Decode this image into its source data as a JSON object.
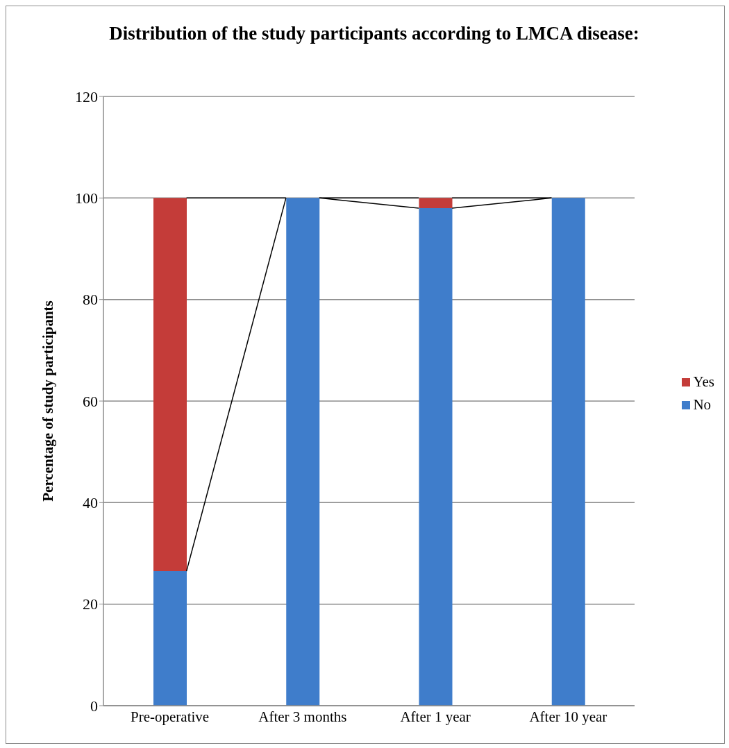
{
  "chart_data": {
    "type": "bar",
    "title": "Distribution of the study participants according to LMCA disease:",
    "ylabel": "Percentage of study participants",
    "categories": [
      "Pre-operative",
      "After 3 months",
      "After 1 year",
      "After 10 year"
    ],
    "series": [
      {
        "name": "No",
        "color": "#3f7dcb",
        "values": [
          26.5,
          100,
          98,
          100
        ]
      },
      {
        "name": "Yes",
        "color": "#c43c39",
        "values": [
          73.5,
          0,
          2,
          0
        ]
      }
    ],
    "stacked": true,
    "ylim": [
      0,
      120
    ],
    "yticks": [
      0,
      20,
      40,
      60,
      80,
      100,
      120
    ],
    "grid": "y",
    "legend": "right"
  }
}
